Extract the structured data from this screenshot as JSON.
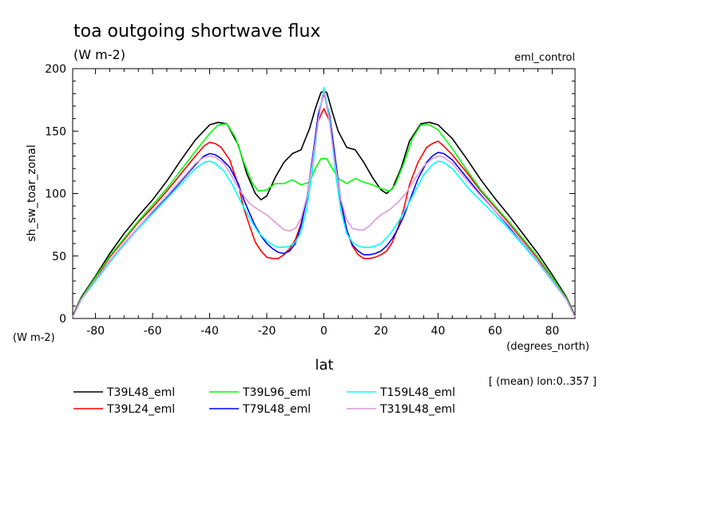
{
  "chart_data": {
    "type": "line",
    "title": "toa outgoing shortwave flux",
    "subtitle": "(W m-2)",
    "experiment": "eml_control",
    "xlabel": "lat",
    "xunits": "(degrees_north)",
    "ylabel": "sh_sw_toar_zonal",
    "yunits": "(W m-2)",
    "averaging_note": "[ (mean) lon:0..357 ]",
    "xlim": [
      -88,
      88
    ],
    "ylim": [
      0,
      200
    ],
    "xticks": [
      -80,
      -60,
      -40,
      -20,
      0,
      20,
      40,
      60,
      80
    ],
    "xtick_labels": [
      "-80",
      "-60",
      "-40",
      "-20",
      "0",
      "20",
      "40",
      "60",
      "80"
    ],
    "yticks": [
      0,
      50,
      100,
      150,
      200
    ],
    "ytick_labels": [
      "0",
      "50",
      "100",
      "150",
      "200"
    ],
    "grid": false,
    "legend_position": "bottom",
    "series": [
      {
        "name": "T39L48_eml",
        "color": "#000000",
        "x": [
          -88,
          -85,
          -80,
          -75,
          -70,
          -65,
          -60,
          -55,
          -50,
          -45,
          -40,
          -37,
          -34,
          -30,
          -27,
          -24,
          -22,
          -20,
          -17,
          -14,
          -11,
          -8,
          -5,
          -3,
          -1,
          0,
          1,
          3,
          5,
          8,
          11,
          14,
          17,
          20,
          22,
          24,
          27,
          30,
          34,
          37,
          40,
          45,
          50,
          55,
          60,
          65,
          70,
          75,
          80,
          85,
          88
        ],
        "y": [
          2,
          17,
          34,
          52,
          68,
          82,
          95,
          110,
          127,
          143,
          155,
          157,
          156,
          139,
          116,
          100,
          95,
          98,
          113,
          125,
          132,
          135,
          152,
          168,
          181,
          182,
          181,
          165,
          150,
          137,
          135,
          125,
          113,
          103,
          100,
          104,
          120,
          142,
          156,
          157,
          155,
          144,
          128,
          111,
          96,
          82,
          67,
          52,
          35,
          17,
          2
        ]
      },
      {
        "name": "T39L24_eml",
        "color": "#ff0000",
        "x": [
          -88,
          -85,
          -80,
          -75,
          -70,
          -65,
          -60,
          -55,
          -50,
          -45,
          -42,
          -40,
          -38,
          -36,
          -33,
          -30,
          -28,
          -26,
          -24,
          -22,
          -20,
          -18,
          -16,
          -14,
          -12,
          -10,
          -8,
          -6,
          -4,
          -2,
          0,
          2,
          4,
          6,
          8,
          10,
          12,
          14,
          16,
          18,
          20,
          22,
          24,
          26,
          28,
          30,
          33,
          36,
          38,
          40,
          42,
          45,
          50,
          55,
          60,
          65,
          70,
          75,
          80,
          85,
          88
        ],
        "y": [
          1,
          16,
          32,
          49,
          63,
          77,
          89,
          102,
          116,
          130,
          138,
          141,
          140,
          137,
          127,
          107,
          88,
          74,
          61,
          54,
          49,
          48,
          48,
          51,
          56,
          63,
          76,
          96,
          128,
          158,
          168,
          158,
          125,
          92,
          71,
          58,
          51,
          48,
          48,
          49,
          51,
          54,
          61,
          73,
          88,
          107,
          125,
          137,
          140,
          142,
          138,
          131,
          117,
          102,
          89,
          76,
          62,
          48,
          32,
          16,
          1
        ]
      },
      {
        "name": "T39L96_eml",
        "color": "#00ff00",
        "x": [
          -88,
          -85,
          -80,
          -75,
          -70,
          -65,
          -60,
          -55,
          -50,
          -45,
          -40,
          -37,
          -34,
          -31,
          -28,
          -25,
          -23,
          -20,
          -17,
          -14,
          -11,
          -8,
          -5,
          -3,
          -1,
          0,
          1,
          3,
          5,
          8,
          11,
          14,
          17,
          20,
          23,
          25,
          28,
          31,
          34,
          37,
          40,
          45,
          50,
          55,
          60,
          65,
          70,
          75,
          80,
          85,
          88
        ],
        "y": [
          1,
          16,
          33,
          50,
          64,
          78,
          91,
          104,
          119,
          134,
          148,
          155,
          156,
          145,
          125,
          108,
          102,
          103,
          108,
          108,
          111,
          107,
          109,
          120,
          128,
          128,
          128,
          120,
          112,
          108,
          112,
          109,
          107,
          104,
          102,
          107,
          124,
          144,
          155,
          155,
          151,
          136,
          119,
          103,
          90,
          77,
          63,
          49,
          33,
          16,
          1
        ]
      },
      {
        "name": "T79L48_eml",
        "color": "#0000ff",
        "x": [
          -88,
          -85,
          -80,
          -75,
          -70,
          -65,
          -60,
          -55,
          -50,
          -45,
          -42,
          -40,
          -38,
          -36,
          -33,
          -30,
          -28,
          -26,
          -24,
          -22,
          -20,
          -18,
          -16,
          -14,
          -12,
          -10,
          -8,
          -6,
          -4,
          -2,
          0,
          2,
          4,
          6,
          8,
          10,
          12,
          14,
          16,
          18,
          20,
          22,
          24,
          26,
          28,
          30,
          33,
          36,
          38,
          40,
          42,
          45,
          50,
          55,
          60,
          65,
          70,
          75,
          80,
          85,
          88
        ],
        "y": [
          1,
          15,
          31,
          46,
          60,
          73,
          85,
          97,
          110,
          123,
          130,
          132,
          131,
          128,
          121,
          108,
          95,
          84,
          74,
          66,
          60,
          56,
          53,
          52,
          54,
          60,
          74,
          96,
          128,
          163,
          180,
          163,
          128,
          94,
          71,
          59,
          54,
          51,
          51,
          52,
          54,
          58,
          64,
          72,
          82,
          94,
          112,
          125,
          130,
          133,
          132,
          127,
          113,
          99,
          86,
          73,
          60,
          46,
          31,
          15,
          1
        ]
      },
      {
        "name": "T159L48_eml",
        "color": "#00ffff",
        "x": [
          -88,
          -85,
          -80,
          -75,
          -70,
          -65,
          -60,
          -55,
          -50,
          -45,
          -42,
          -40,
          -38,
          -35,
          -32,
          -29,
          -26,
          -23,
          -20,
          -18,
          -16,
          -14,
          -12,
          -10,
          -8,
          -6,
          -4,
          -2,
          0,
          2,
          4,
          6,
          8,
          10,
          12,
          14,
          16,
          18,
          20,
          23,
          26,
          29,
          32,
          35,
          38,
          40,
          42,
          45,
          50,
          55,
          60,
          65,
          70,
          75,
          80,
          85,
          88
        ],
        "y": [
          1,
          15,
          30,
          45,
          59,
          72,
          84,
          96,
          108,
          120,
          125,
          126,
          124,
          118,
          107,
          93,
          80,
          69,
          62,
          59,
          57,
          57,
          58,
          61,
          69,
          88,
          118,
          158,
          185,
          160,
          118,
          86,
          68,
          61,
          58,
          57,
          57,
          58,
          60,
          67,
          77,
          89,
          102,
          115,
          123,
          126,
          125,
          120,
          106,
          94,
          83,
          71,
          58,
          45,
          30,
          15,
          1
        ]
      },
      {
        "name": "T319L48_eml",
        "color": "#dd99dd",
        "x": [
          -88,
          -85,
          -80,
          -75,
          -70,
          -65,
          -60,
          -55,
          -50,
          -45,
          -42,
          -40,
          -38,
          -35,
          -32,
          -29,
          -26,
          -23,
          -20,
          -18,
          -16,
          -14,
          -12,
          -10,
          -8,
          -6,
          -4,
          -2,
          0,
          2,
          4,
          6,
          8,
          10,
          12,
          14,
          16,
          18,
          20,
          23,
          26,
          29,
          32,
          35,
          38,
          40,
          42,
          45,
          50,
          55,
          60,
          65,
          70,
          75,
          80,
          85,
          88
        ],
        "y": [
          1,
          15,
          31,
          46,
          60,
          73,
          86,
          98,
          111,
          124,
          129,
          130,
          129,
          124,
          113,
          101,
          92,
          87,
          83,
          79,
          75,
          71,
          70,
          72,
          80,
          97,
          125,
          158,
          182,
          157,
          123,
          95,
          79,
          72,
          71,
          71,
          74,
          79,
          83,
          87,
          93,
          101,
          112,
          122,
          128,
          130,
          129,
          124,
          111,
          98,
          86,
          74,
          60,
          46,
          31,
          15,
          1
        ]
      }
    ]
  }
}
